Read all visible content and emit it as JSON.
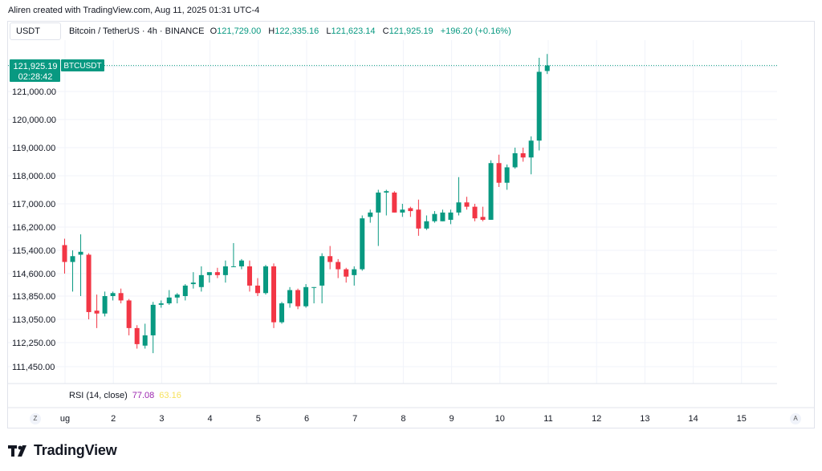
{
  "header": {
    "attribution": "Aliren created with TradingView.com, Aug 11, 2025 01:31 UTC-4",
    "symbol_box": "USDT"
  },
  "legend": {
    "title": "Bitcoin / TetherUS · 4h · BINANCE",
    "o_label": "O",
    "o_value": "121,729.00",
    "h_label": "H",
    "h_value": "122,335.16",
    "l_label": "L",
    "l_value": "121,623.14",
    "c_label": "C",
    "c_value": "121,925.19",
    "change": "+196.20 (+0.16%)"
  },
  "price_tag": {
    "price": "121,925.19",
    "countdown": "02:28:42",
    "symbol": "BTCUSDT"
  },
  "rsi": {
    "label": "RSI (14, close)",
    "value1": "77.08",
    "value2": "63.16"
  },
  "bottom_buttons": {
    "left": "Z",
    "right": "A"
  },
  "branding": {
    "name": "TradingView"
  },
  "colors": {
    "up": "#089981",
    "down": "#f23645",
    "grid": "#f0f3fa",
    "text": "#131722"
  },
  "chart_data": {
    "type": "candlestick",
    "title": "Bitcoin / TetherUS · 4h · BINANCE",
    "x_tick_labels": [
      "ug",
      "2",
      "3",
      "4",
      "5",
      "6",
      "7",
      "8",
      "9",
      "10",
      "11",
      "12",
      "13",
      "14",
      "15"
    ],
    "y_tick_labels": [
      "121,000.00",
      "120,000.00",
      "119,000.00",
      "118,000.00",
      "117,000.00",
      "116,200.00",
      "115,400.00",
      "114,600.00",
      "113,850.00",
      "113,050.00",
      "112,250.00",
      "111,450.00"
    ],
    "y_ticks": [
      121000,
      120000,
      119000,
      118000,
      117000,
      116200,
      115400,
      114600,
      113850,
      113050,
      112250,
      111450
    ],
    "last_price": 121925.19,
    "candles": [
      {
        "o": 115580,
        "h": 115800,
        "l": 114600,
        "c": 115000
      },
      {
        "o": 115000,
        "h": 115400,
        "l": 114000,
        "c": 115200
      },
      {
        "o": 115250,
        "h": 115950,
        "l": 113850,
        "c": 115350
      },
      {
        "o": 115250,
        "h": 115300,
        "l": 113050,
        "c": 113300
      },
      {
        "o": 113350,
        "h": 113900,
        "l": 112750,
        "c": 113250
      },
      {
        "o": 113250,
        "h": 114000,
        "l": 113150,
        "c": 113850
      },
      {
        "o": 113850,
        "h": 114000,
        "l": 113700,
        "c": 113950
      },
      {
        "o": 113950,
        "h": 114100,
        "l": 113600,
        "c": 113700
      },
      {
        "o": 113700,
        "h": 113750,
        "l": 112500,
        "c": 112750
      },
      {
        "o": 112750,
        "h": 112850,
        "l": 112050,
        "c": 112200
      },
      {
        "o": 112150,
        "h": 112900,
        "l": 112050,
        "c": 112500
      },
      {
        "o": 112500,
        "h": 113650,
        "l": 111900,
        "c": 113550
      },
      {
        "o": 113550,
        "h": 113700,
        "l": 113450,
        "c": 113600
      },
      {
        "o": 113600,
        "h": 114050,
        "l": 113550,
        "c": 113800
      },
      {
        "o": 113800,
        "h": 113950,
        "l": 113600,
        "c": 113900
      },
      {
        "o": 113850,
        "h": 114250,
        "l": 113700,
        "c": 114200
      },
      {
        "o": 114250,
        "h": 114650,
        "l": 114100,
        "c": 114300
      },
      {
        "o": 114150,
        "h": 114850,
        "l": 114000,
        "c": 114550
      },
      {
        "o": 114550,
        "h": 114600,
        "l": 114300,
        "c": 114650
      },
      {
        "o": 114650,
        "h": 114800,
        "l": 114450,
        "c": 114550
      },
      {
        "o": 114550,
        "h": 115050,
        "l": 114300,
        "c": 114850
      },
      {
        "o": 114850,
        "h": 115650,
        "l": 114850,
        "c": 114850
      },
      {
        "o": 114850,
        "h": 115100,
        "l": 114750,
        "c": 115050
      },
      {
        "o": 114850,
        "h": 115050,
        "l": 114000,
        "c": 114200
      },
      {
        "o": 114200,
        "h": 114450,
        "l": 113850,
        "c": 113950
      },
      {
        "o": 113950,
        "h": 114900,
        "l": 113900,
        "c": 114850
      },
      {
        "o": 114850,
        "h": 114950,
        "l": 112750,
        "c": 112950
      },
      {
        "o": 112950,
        "h": 113650,
        "l": 112900,
        "c": 113600
      },
      {
        "o": 113600,
        "h": 114150,
        "l": 113450,
        "c": 114050
      },
      {
        "o": 114050,
        "h": 114100,
        "l": 113400,
        "c": 113500
      },
      {
        "o": 113500,
        "h": 114250,
        "l": 113450,
        "c": 114150
      },
      {
        "o": 114150,
        "h": 114150,
        "l": 113600,
        "c": 114150
      },
      {
        "o": 114200,
        "h": 115300,
        "l": 113600,
        "c": 115200
      },
      {
        "o": 115200,
        "h": 115550,
        "l": 114750,
        "c": 115000
      },
      {
        "o": 115000,
        "h": 115100,
        "l": 114450,
        "c": 114750
      },
      {
        "o": 114750,
        "h": 114800,
        "l": 114300,
        "c": 114500
      },
      {
        "o": 114550,
        "h": 114850,
        "l": 114200,
        "c": 114750
      },
      {
        "o": 114750,
        "h": 116600,
        "l": 114700,
        "c": 116500
      },
      {
        "o": 116550,
        "h": 116800,
        "l": 116350,
        "c": 116700
      },
      {
        "o": 116700,
        "h": 117500,
        "l": 115550,
        "c": 117400
      },
      {
        "o": 117400,
        "h": 117500,
        "l": 116600,
        "c": 117450
      },
      {
        "o": 117400,
        "h": 117450,
        "l": 116700,
        "c": 116700
      },
      {
        "o": 116700,
        "h": 117000,
        "l": 116550,
        "c": 116800
      },
      {
        "o": 116850,
        "h": 116900,
        "l": 116550,
        "c": 116750
      },
      {
        "o": 116800,
        "h": 117150,
        "l": 115900,
        "c": 116150
      },
      {
        "o": 116150,
        "h": 116600,
        "l": 116100,
        "c": 116400
      },
      {
        "o": 116400,
        "h": 116750,
        "l": 116350,
        "c": 116650
      },
      {
        "o": 116400,
        "h": 116800,
        "l": 116400,
        "c": 116700
      },
      {
        "o": 116450,
        "h": 116800,
        "l": 116300,
        "c": 116700
      },
      {
        "o": 116700,
        "h": 117950,
        "l": 116600,
        "c": 117050
      },
      {
        "o": 117050,
        "h": 117250,
        "l": 116800,
        "c": 116900
      },
      {
        "o": 116900,
        "h": 117000,
        "l": 116400,
        "c": 116500
      },
      {
        "o": 116550,
        "h": 116900,
        "l": 116400,
        "c": 116450
      },
      {
        "o": 116450,
        "h": 118550,
        "l": 116450,
        "c": 118450
      },
      {
        "o": 118450,
        "h": 118750,
        "l": 117600,
        "c": 117750
      },
      {
        "o": 117750,
        "h": 118400,
        "l": 117500,
        "c": 118300
      },
      {
        "o": 118300,
        "h": 119000,
        "l": 118250,
        "c": 118800
      },
      {
        "o": 118800,
        "h": 119000,
        "l": 118500,
        "c": 118650
      },
      {
        "o": 118650,
        "h": 119400,
        "l": 118050,
        "c": 119250
      },
      {
        "o": 119250,
        "h": 122200,
        "l": 118900,
        "c": 121700
      },
      {
        "o": 121729,
        "h": 122335.16,
        "l": 121623.14,
        "c": 121925.19
      }
    ]
  }
}
